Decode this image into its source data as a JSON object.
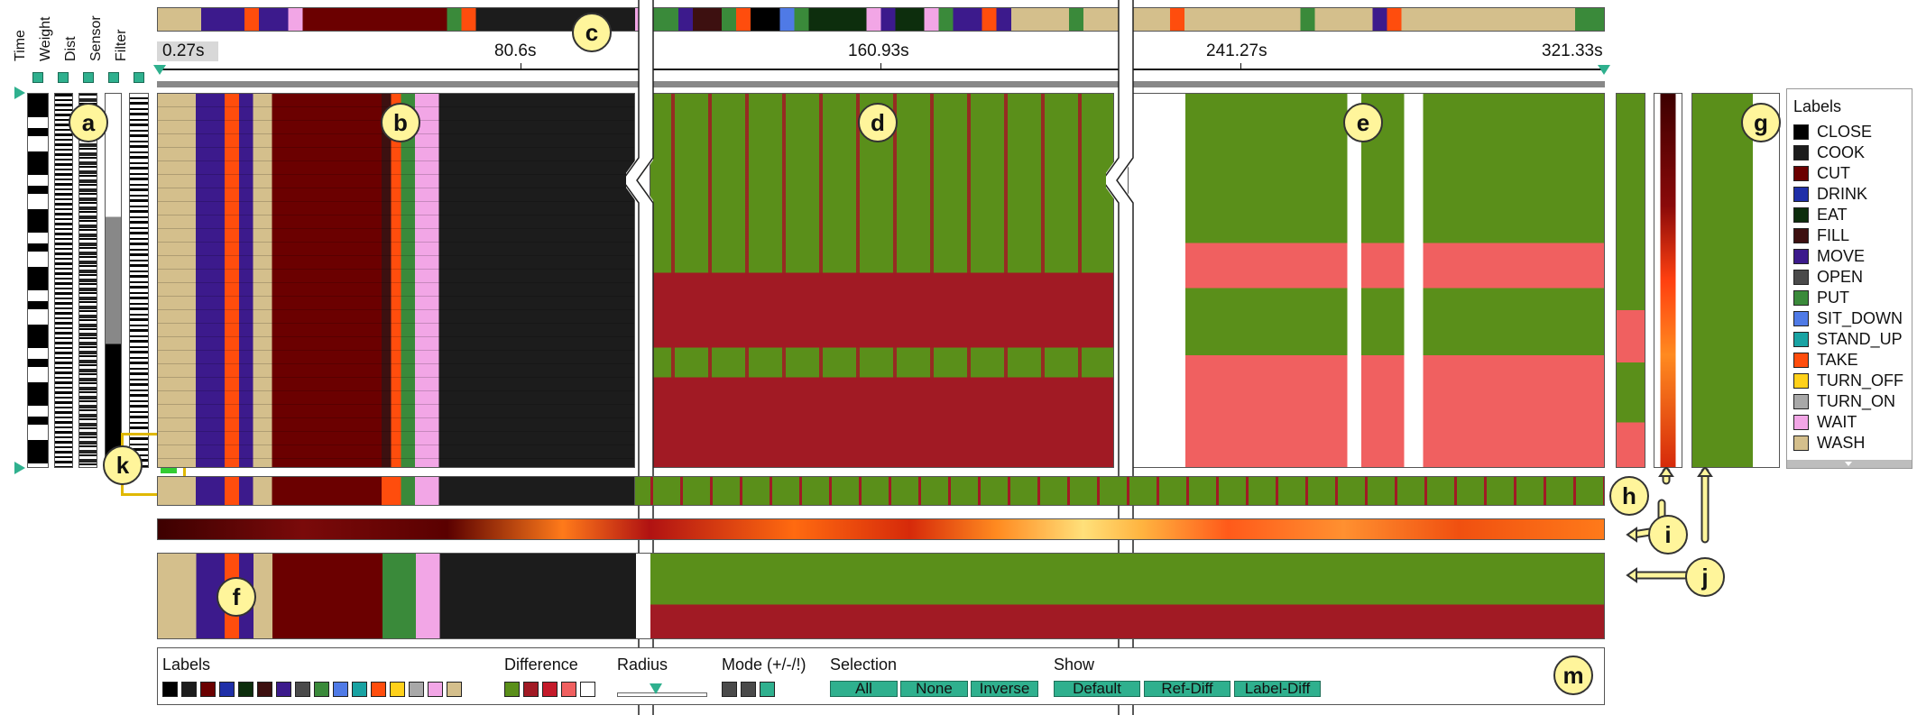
{
  "row_filters": {
    "columns": [
      "Time",
      "Weight",
      "Dist",
      "Sensor",
      "Filter"
    ]
  },
  "time_axis": {
    "ticks": [
      "0.27s",
      "80.6s",
      "160.93s",
      "241.27s",
      "321.33s"
    ]
  },
  "callouts": [
    "a",
    "b",
    "c",
    "d",
    "e",
    "f",
    "g",
    "h",
    "i",
    "j",
    "k",
    "m"
  ],
  "legend": {
    "title": "Labels",
    "items": [
      {
        "label": "CLOSE",
        "color": "#000000"
      },
      {
        "label": "COOK",
        "color": "#1c1c1c"
      },
      {
        "label": "CUT",
        "color": "#6b0000"
      },
      {
        "label": "DRINK",
        "color": "#1f2fa8"
      },
      {
        "label": "EAT",
        "color": "#0d2e0d"
      },
      {
        "label": "FILL",
        "color": "#3d1010"
      },
      {
        "label": "MOVE",
        "color": "#3c1a8c"
      },
      {
        "label": "OPEN",
        "color": "#4a4a4a"
      },
      {
        "label": "PUT",
        "color": "#3a8a3a"
      },
      {
        "label": "SIT_DOWN",
        "color": "#4f7ae6"
      },
      {
        "label": "STAND_UP",
        "color": "#19a3a3"
      },
      {
        "label": "TAKE",
        "color": "#ff4d0d"
      },
      {
        "label": "TURN_OFF",
        "color": "#ffd11a"
      },
      {
        "label": "TURN_ON",
        "color": "#a8a8a8"
      },
      {
        "label": "WAIT",
        "color": "#f2a6e6"
      },
      {
        "label": "WASH",
        "color": "#d4bf8c"
      }
    ]
  },
  "difference_colors": {
    "match": "#5a8f1a",
    "mismatch_dark": "#a11a24",
    "mismatch_light": "#f06060"
  },
  "controls": {
    "labels_title": "Labels",
    "difference_title": "Difference",
    "radius_title": "Radius",
    "mode_title": "Mode (+/-/!)",
    "selection_title": "Selection",
    "selection_buttons": [
      "All",
      "None",
      "Inverse"
    ],
    "show_title": "Show",
    "show_buttons": [
      "Default",
      "Ref-Diff",
      "Label-Diff"
    ]
  }
}
